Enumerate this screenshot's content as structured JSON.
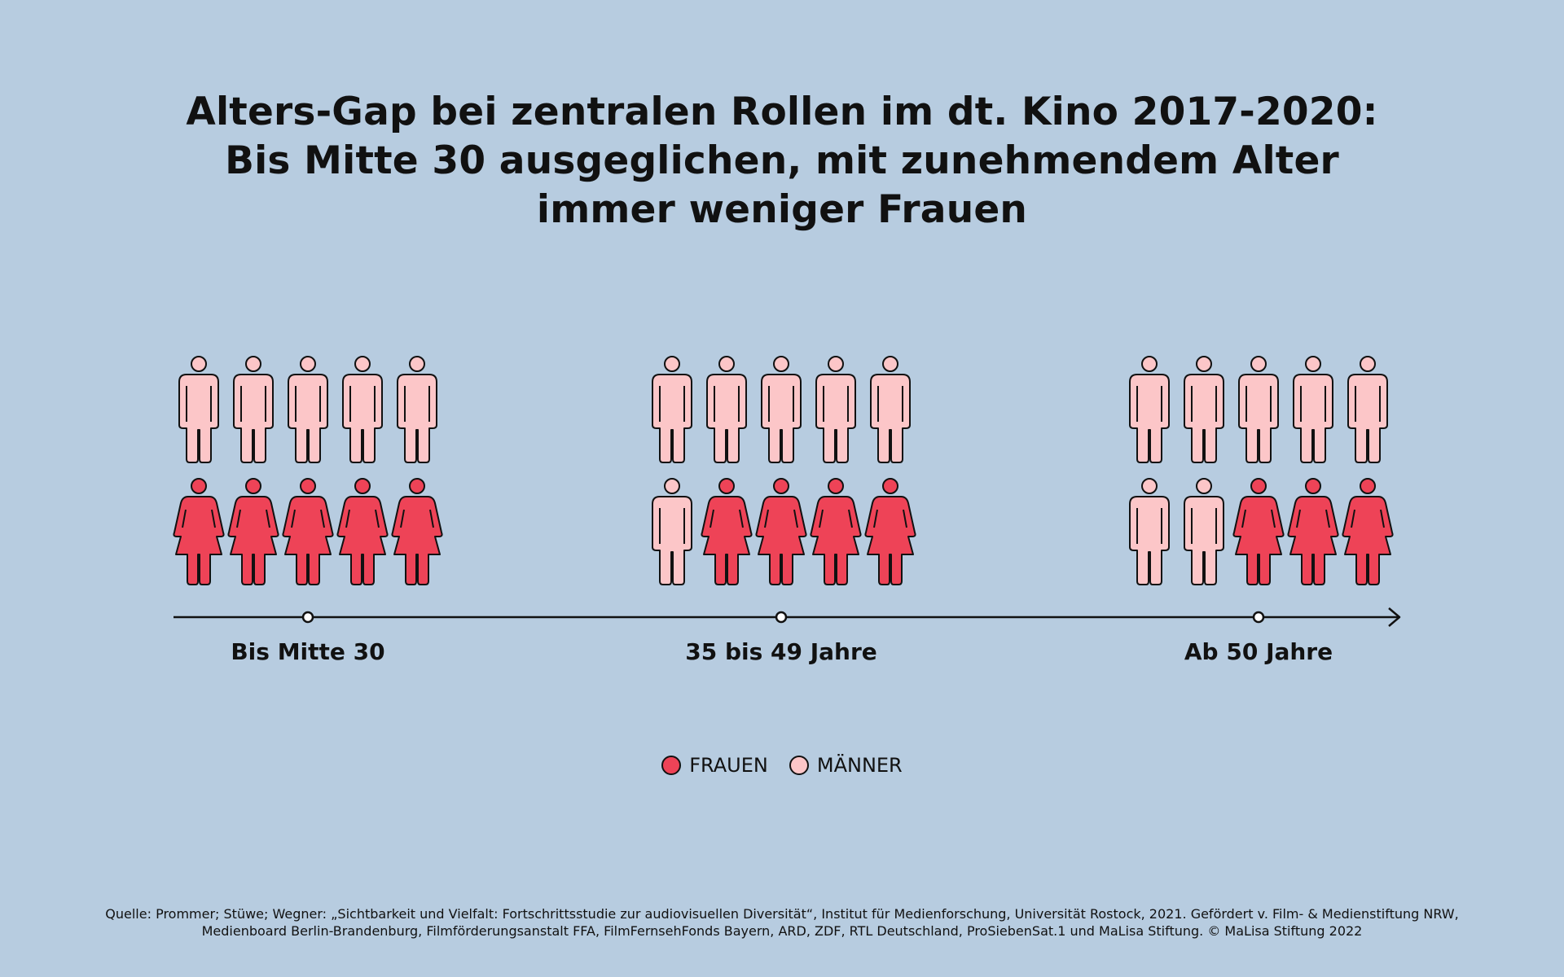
{
  "title": {
    "line1": "Alters-Gap bei zentralen Rollen im dt. Kino 2017-2020:",
    "line2": "Bis Mitte 30 ausgeglichen, mit zunehmendem Alter",
    "line3": "immer weniger Frauen"
  },
  "colors": {
    "background": "#b7cce0",
    "frauen": "#ee4357",
    "maenner": "#fcc6c8",
    "outline": "#111111"
  },
  "chart_data": {
    "type": "pictogram",
    "categories": [
      "Bis Mitte 30",
      "35 bis 49 Jahre",
      "Ab 50 Jahre"
    ],
    "series": [
      {
        "name": "FRAUEN",
        "values": [
          5,
          4,
          3
        ]
      },
      {
        "name": "MÄNNER",
        "values": [
          5,
          6,
          7
        ]
      }
    ],
    "icons_per_group": 10,
    "legend_position": "bottom-center"
  },
  "legend": {
    "frauen": "FRAUEN",
    "maenner": "MÄNNER"
  },
  "source": {
    "line1": "Quelle: Prommer; Stüwe; Wegner: „Sichtbarkeit und Vielfalt: Fortschrittsstudie zur audiovisuellen Diversität“, Institut für Medienforschung, Universität Rostock, 2021. Gefördert v. Film- & Medienstiftung NRW,",
    "line2": "Medienboard Berlin-Brandenburg, Filmförderungsanstalt FFA, FilmFernsehFonds Bayern, ARD, ZDF, RTL Deutschland, ProSiebenSat.1 und MaLisa Stiftung. © MaLisa Stiftung 2022"
  }
}
